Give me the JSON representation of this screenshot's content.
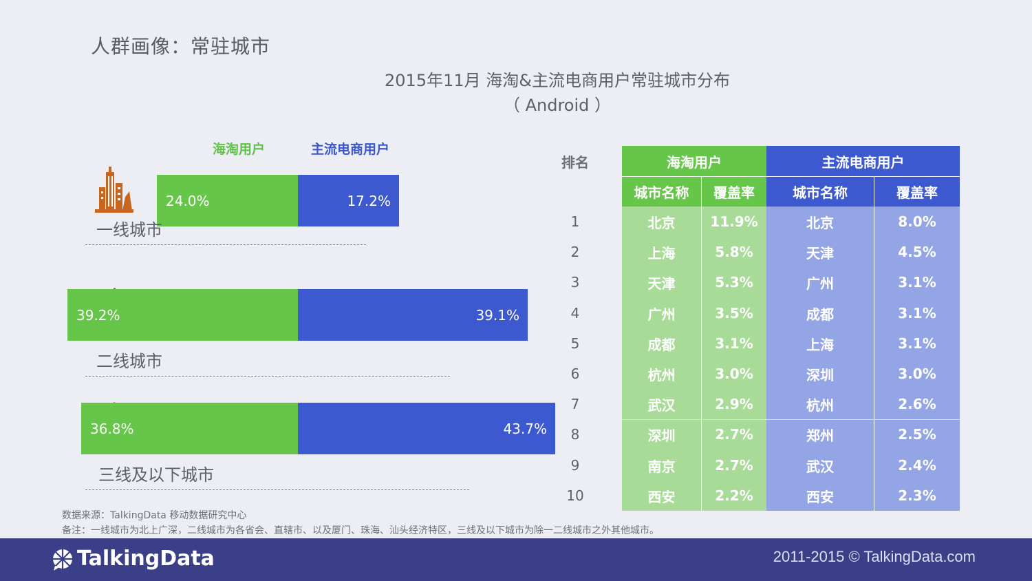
{
  "page_title": "人群画像：常驻城市",
  "chart_title_line1": "2015年11月 海淘&主流电商用户常驻城市分布",
  "chart_title_line2": "（ Android ）",
  "legend": {
    "green": "海淘用户",
    "blue": "主流电商用户"
  },
  "colors": {
    "green": "#66c64a",
    "blue": "#3c59cf",
    "light_green": "#a8db97",
    "light_blue": "#94a5e6"
  },
  "chart_data": [
    {
      "type": "bar",
      "orientation": "horizontal",
      "title": "2015年11月 海淘&主流电商用户常驻城市分布（Android）",
      "categories": [
        "一线城市",
        "二线城市",
        "三线及以下城市"
      ],
      "series": [
        {
          "name": "海淘用户",
          "values": [
            24.0,
            39.2,
            36.8
          ],
          "labels": [
            "24.0%",
            "39.2%",
            "36.8%"
          ]
        },
        {
          "name": "主流电商用户",
          "values": [
            17.2,
            39.1,
            43.7
          ],
          "labels": [
            "17.2%",
            "39.1%",
            "43.7%"
          ]
        }
      ],
      "unit": "%"
    },
    {
      "type": "table",
      "header": {
        "rank": "排名",
        "group_green": "海淘用户",
        "group_blue": "主流电商用户",
        "city": "城市名称",
        "rate": "覆盖率"
      },
      "rows": [
        {
          "rank": "1",
          "g_city": "北京",
          "g_rate": "11.9%",
          "b_city": "北京",
          "b_rate": "8.0%"
        },
        {
          "rank": "2",
          "g_city": "上海",
          "g_rate": "5.8%",
          "b_city": "天津",
          "b_rate": "4.5%"
        },
        {
          "rank": "3",
          "g_city": "天津",
          "g_rate": "5.3%",
          "b_city": "广州",
          "b_rate": "3.1%"
        },
        {
          "rank": "4",
          "g_city": "广州",
          "g_rate": "3.5%",
          "b_city": "成都",
          "b_rate": "3.1%"
        },
        {
          "rank": "5",
          "g_city": "成都",
          "g_rate": "3.1%",
          "b_city": "上海",
          "b_rate": "3.1%"
        },
        {
          "rank": "6",
          "g_city": "杭州",
          "g_rate": "3.0%",
          "b_city": "深圳",
          "b_rate": "3.0%"
        },
        {
          "rank": "7",
          "g_city": "武汉",
          "g_rate": "2.9%",
          "b_city": "杭州",
          "b_rate": "2.6%"
        },
        {
          "rank": "8",
          "g_city": "深圳",
          "g_rate": "2.7%",
          "b_city": "郑州",
          "b_rate": "2.5%"
        },
        {
          "rank": "9",
          "g_city": "南京",
          "g_rate": "2.7%",
          "b_city": "武汉",
          "b_rate": "2.4%"
        },
        {
          "rank": "10",
          "g_city": "西安",
          "g_rate": "2.2%",
          "b_city": "西安",
          "b_rate": "2.3%"
        }
      ]
    }
  ],
  "footnote_source": "数据来源：TalkingData 移动数据研究中心",
  "footnote_note": "备注：一线城市为北上广深，二线城市为各省会、直辖市、以及厦门、珠海、汕头经济特区，三线及以下城市为除一二线城市之外其他城市。",
  "footer": {
    "brand": "TalkingData",
    "copyright": "2011-2015 © TalkingData.com"
  }
}
